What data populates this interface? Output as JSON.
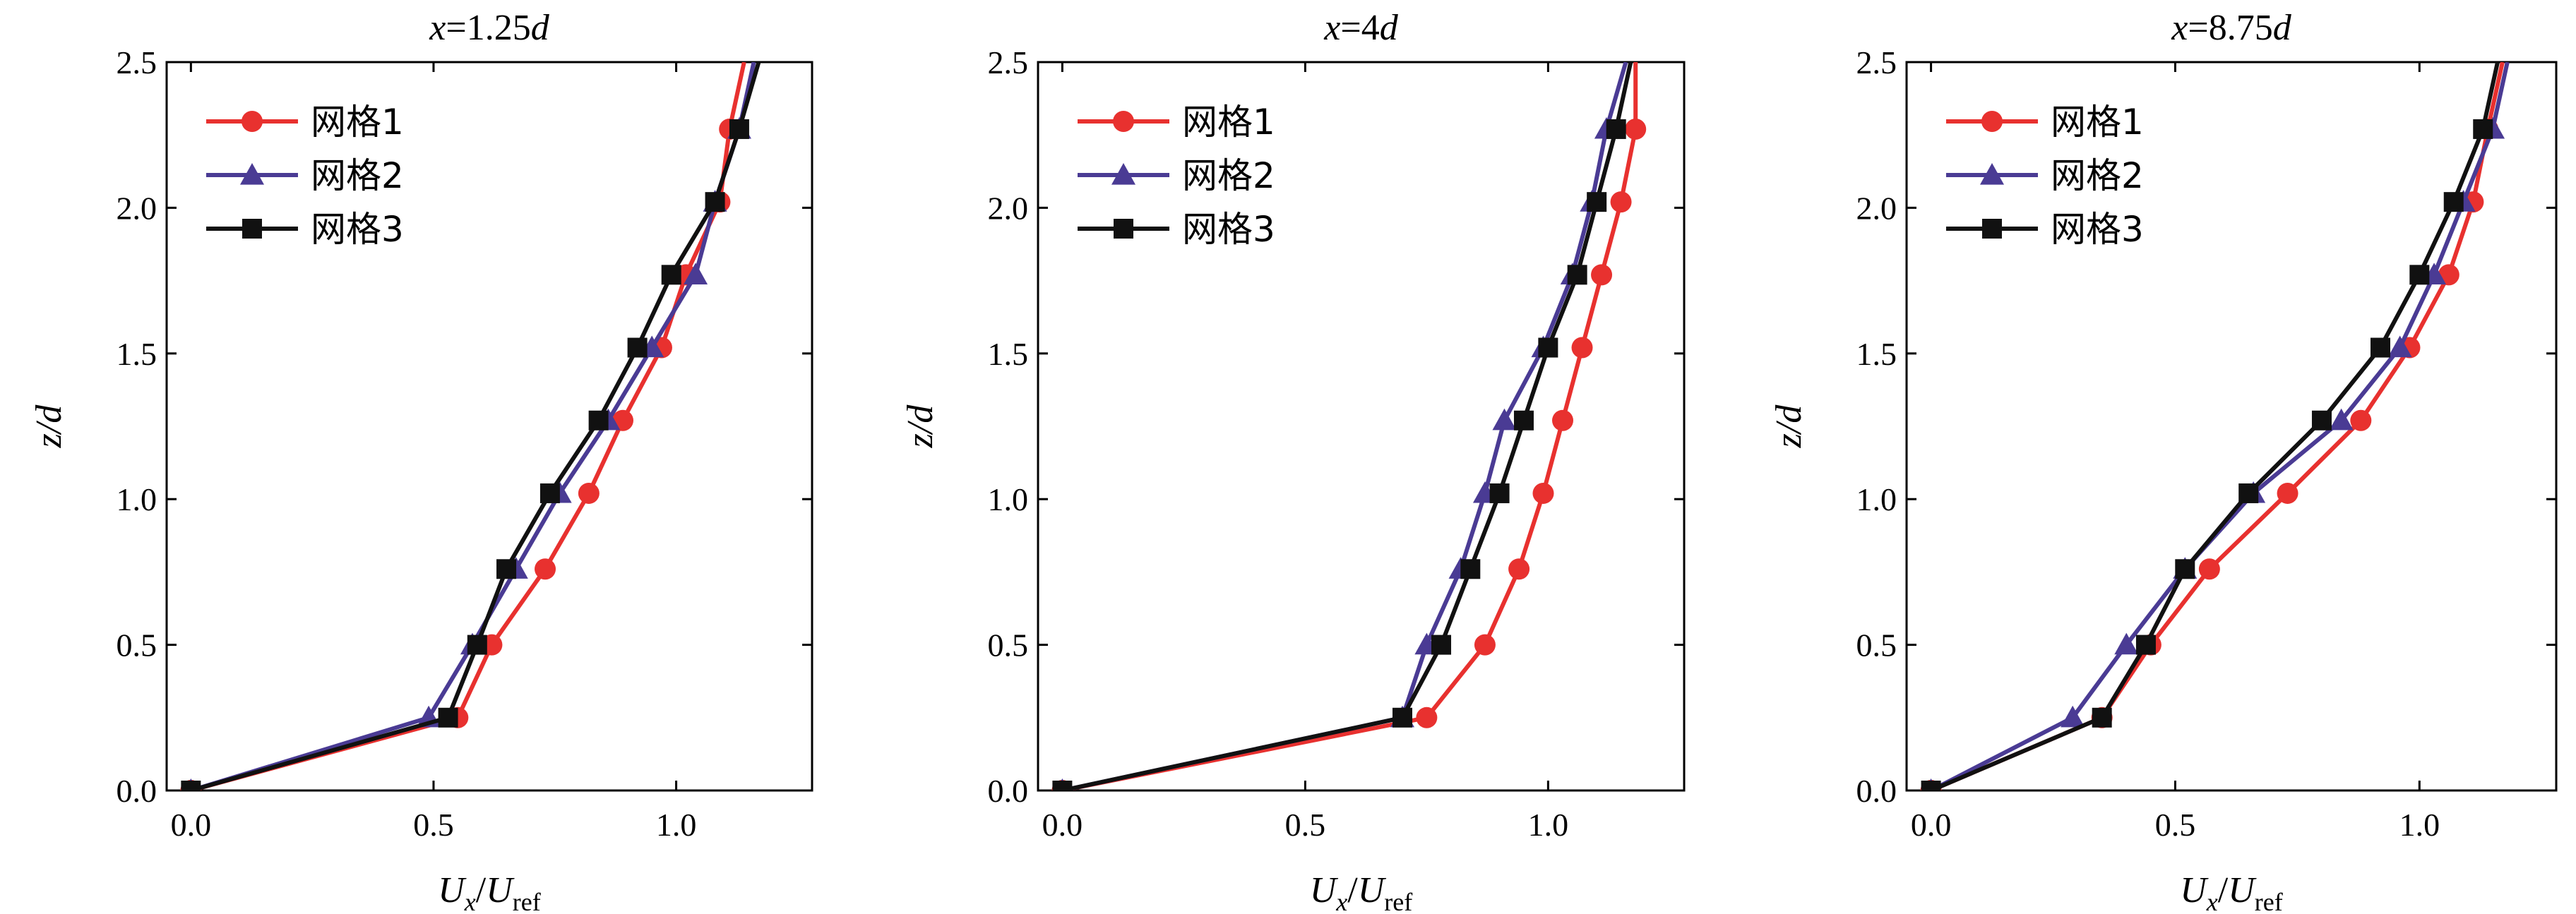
{
  "chart_data": [
    {
      "type": "line",
      "title_var": "x",
      "title_eq": "=1.25",
      "title_unit": "d",
      "xlabel": {
        "main": "U",
        "sub": "x",
        "slash": "/",
        "main2": "U",
        "sub2": "ref"
      },
      "ylabel": "z/d",
      "xlim": [
        -0.05,
        1.28
      ],
      "ylim": [
        0,
        2.5
      ],
      "xticks": [
        "0.0",
        "0.5",
        "1.0"
      ],
      "yticks": [
        "0.0",
        "0.5",
        "1.0",
        "1.5",
        "2.0",
        "2.5"
      ],
      "legend_position": "top-left",
      "series": [
        {
          "name": "网格1",
          "color": "#e8312f",
          "marker": "circle",
          "x": [
            0.0,
            0.55,
            0.62,
            0.73,
            0.82,
            0.89,
            0.97,
            1.02,
            1.09,
            1.11,
            1.14
          ],
          "y": [
            0.0,
            0.25,
            0.5,
            0.76,
            1.02,
            1.27,
            1.52,
            1.77,
            2.02,
            2.27,
            2.5
          ]
        },
        {
          "name": "网格2",
          "color": "#4a3b94",
          "marker": "triangle",
          "x": [
            0.0,
            0.49,
            0.58,
            0.67,
            0.76,
            0.86,
            0.95,
            1.04,
            1.08,
            1.13,
            1.16
          ],
          "y": [
            0.0,
            0.25,
            0.5,
            0.76,
            1.02,
            1.27,
            1.52,
            1.77,
            2.02,
            2.27,
            2.5
          ]
        },
        {
          "name": "网格3",
          "color": "#111111",
          "marker": "square",
          "x": [
            0.0,
            0.53,
            0.59,
            0.65,
            0.74,
            0.84,
            0.92,
            0.99,
            1.08,
            1.13,
            1.17
          ],
          "y": [
            0.0,
            0.25,
            0.5,
            0.76,
            1.02,
            1.27,
            1.52,
            1.77,
            2.02,
            2.27,
            2.5
          ]
        }
      ]
    },
    {
      "type": "line",
      "title_var": "x",
      "title_eq": "=4",
      "title_unit": "d",
      "xlabel": {
        "main": "U",
        "sub": "x",
        "slash": "/",
        "main2": "U",
        "sub2": "ref"
      },
      "ylabel": "z/d",
      "xlim": [
        -0.05,
        1.28
      ],
      "ylim": [
        0,
        2.5
      ],
      "xticks": [
        "0.0",
        "0.5",
        "1.0"
      ],
      "yticks": [
        "0.0",
        "0.5",
        "1.0",
        "1.5",
        "2.0",
        "2.5"
      ],
      "legend_position": "top-left",
      "series": [
        {
          "name": "网格1",
          "color": "#e8312f",
          "marker": "circle",
          "x": [
            0.0,
            0.75,
            0.87,
            0.94,
            0.99,
            1.03,
            1.07,
            1.11,
            1.15,
            1.18,
            1.18
          ],
          "y": [
            0.0,
            0.25,
            0.5,
            0.76,
            1.02,
            1.27,
            1.52,
            1.77,
            2.02,
            2.27,
            2.5
          ]
        },
        {
          "name": "网格2",
          "color": "#4a3b94",
          "marker": "triangle",
          "x": [
            0.0,
            0.7,
            0.75,
            0.82,
            0.87,
            0.91,
            0.99,
            1.05,
            1.09,
            1.12,
            1.16
          ],
          "y": [
            0.0,
            0.25,
            0.5,
            0.76,
            1.02,
            1.27,
            1.52,
            1.77,
            2.02,
            2.27,
            2.5
          ]
        },
        {
          "name": "网格3",
          "color": "#111111",
          "marker": "square",
          "x": [
            0.0,
            0.7,
            0.78,
            0.84,
            0.9,
            0.95,
            1.0,
            1.06,
            1.1,
            1.14,
            1.17
          ],
          "y": [
            0.0,
            0.25,
            0.5,
            0.76,
            1.02,
            1.27,
            1.52,
            1.77,
            2.02,
            2.27,
            2.5
          ]
        }
      ]
    },
    {
      "type": "line",
      "title_var": "x",
      "title_eq": "=8.75",
      "title_unit": "d",
      "xlabel": {
        "main": "U",
        "sub": "x",
        "slash": "/",
        "main2": "U",
        "sub2": "ref"
      },
      "ylabel": "z/d",
      "xlim": [
        -0.05,
        1.28
      ],
      "ylim": [
        0,
        2.5
      ],
      "xticks": [
        "0.0",
        "0.5",
        "1.0"
      ],
      "yticks": [
        "0.0",
        "0.5",
        "1.0",
        "1.5",
        "2.0",
        "2.5"
      ],
      "legend_position": "top-left",
      "series": [
        {
          "name": "网格1",
          "color": "#e8312f",
          "marker": "circle",
          "x": [
            0.0,
            0.35,
            0.45,
            0.57,
            0.73,
            0.88,
            0.98,
            1.06,
            1.11,
            1.14,
            1.17
          ],
          "y": [
            0.0,
            0.25,
            0.5,
            0.76,
            1.02,
            1.27,
            1.52,
            1.77,
            2.02,
            2.27,
            2.5
          ]
        },
        {
          "name": "网格2",
          "color": "#4a3b94",
          "marker": "triangle",
          "x": [
            0.0,
            0.29,
            0.4,
            0.52,
            0.66,
            0.84,
            0.96,
            1.03,
            1.09,
            1.15,
            1.18
          ],
          "y": [
            0.0,
            0.25,
            0.5,
            0.76,
            1.02,
            1.27,
            1.52,
            1.77,
            2.02,
            2.27,
            2.5
          ]
        },
        {
          "name": "网格3",
          "color": "#111111",
          "marker": "square",
          "x": [
            0.0,
            0.35,
            0.44,
            0.52,
            0.65,
            0.8,
            0.92,
            1.0,
            1.07,
            1.13,
            1.16
          ],
          "y": [
            0.0,
            0.25,
            0.5,
            0.76,
            1.02,
            1.27,
            1.52,
            1.77,
            2.02,
            2.27,
            2.5
          ]
        }
      ]
    }
  ]
}
